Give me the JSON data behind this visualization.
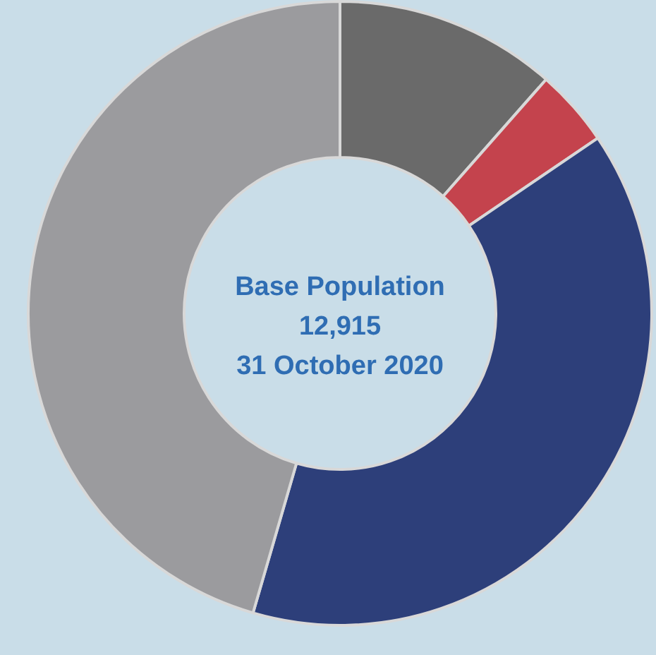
{
  "chart_data": {
    "type": "donut",
    "categories": [
      null,
      null,
      null,
      null
    ],
    "values": [
      11.5,
      4,
      39,
      45.5
    ],
    "colors": [
      "#6a6a6a",
      "#c4434d",
      "#2d3f7a",
      "#9b9b9e"
    ],
    "annotations": [
      "Base Population",
      "12,915",
      "31 October 2020"
    ]
  }
}
